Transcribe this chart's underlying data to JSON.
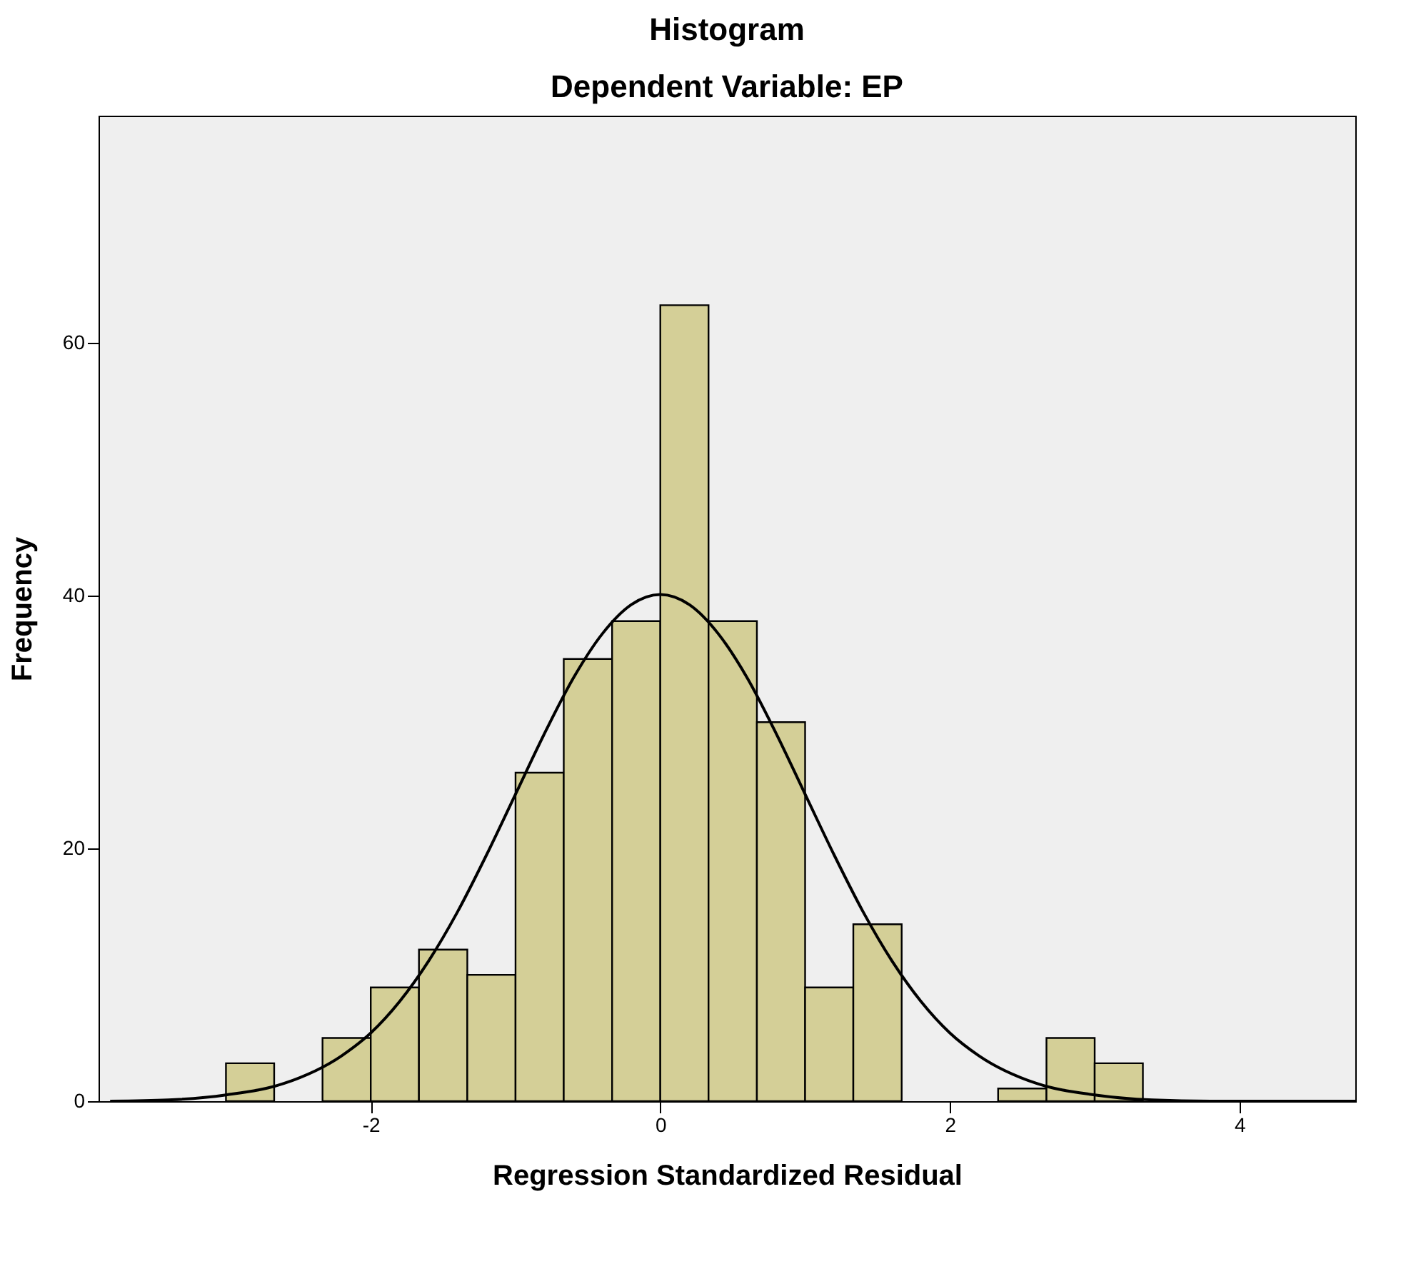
{
  "chart_data": {
    "type": "histogram",
    "title": "Histogram",
    "subtitle": "Dependent Variable: EP",
    "xlabel": "Regression Standardized Residual",
    "ylabel": "Frequency",
    "series": [
      {
        "type": "histogram",
        "color": "#d4cf97",
        "bins": [
          -3,
          -2.667,
          -2.333,
          -2,
          -1.667,
          -1.333,
          -1,
          -0.667,
          -0.333,
          0,
          0.333,
          0.667,
          1,
          1.333,
          1.667,
          2,
          2.333,
          2.667,
          3,
          3.333
        ],
        "values": [
          3,
          0,
          5,
          9,
          12,
          10,
          26,
          35,
          38,
          63,
          38,
          30,
          9,
          14,
          0,
          0,
          1,
          5,
          3
        ]
      },
      {
        "type": "line",
        "color": "#000000",
        "x": [
          -3.8,
          -3.4,
          -3,
          -2.6,
          -2.2,
          -2,
          -1.8,
          -1.6,
          -1.4,
          -1.2,
          -1,
          -0.8,
          -0.6,
          -0.4,
          -0.2,
          0,
          0.2,
          0.4,
          0.6,
          0.8,
          1,
          1.2,
          1.4,
          1.6,
          1.8,
          2,
          2.2,
          2.6,
          3,
          3.4,
          3.8,
          4.2,
          4.8
        ],
        "values": [
          0,
          0.1,
          0.5,
          1.4,
          3.6,
          5.4,
          7.9,
          11.1,
          15,
          19.5,
          24.3,
          29.1,
          33.5,
          37,
          39.3,
          40.1,
          39.3,
          37,
          33.5,
          29.1,
          24.3,
          19.5,
          15,
          11.1,
          7.9,
          5.4,
          3.6,
          1.4,
          0.5,
          0.1,
          0,
          0,
          0
        ]
      }
    ],
    "xlim": [
      -3.88,
      4.8
    ],
    "xticks": [
      -2,
      0,
      2,
      4
    ],
    "ylim": [
      0,
      78
    ],
    "yticks": [
      0,
      20,
      40,
      60
    ]
  }
}
